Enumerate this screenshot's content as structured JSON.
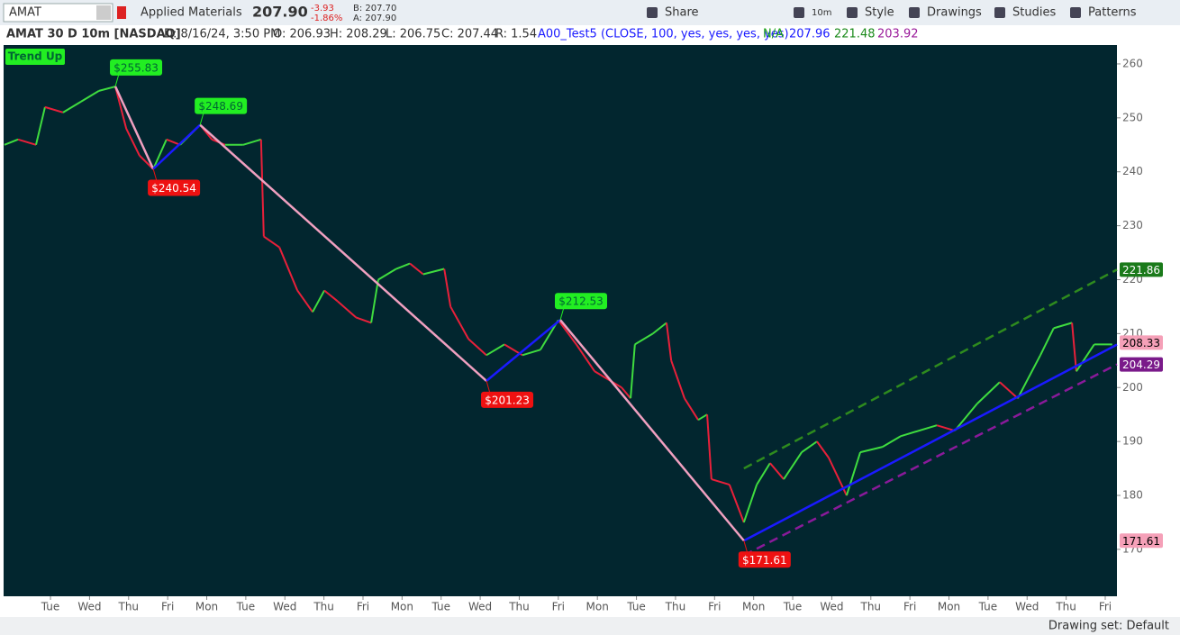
{
  "toolbar": {
    "symbol": "AMAT",
    "company": "Applied Materials",
    "last": "207.90",
    "change": "-3.93",
    "change_pct": "-1.86%",
    "bid": "B: 207.70",
    "ask": "A: 207.90",
    "buttons": [
      "Share",
      "10m",
      "Style",
      "Drawings",
      "Studies",
      "Patterns"
    ]
  },
  "info_bar": {
    "items": [
      "AMAT 30 D 10m [NASDAQ]",
      "D: 8/16/24, 3:50 PM",
      "O: 206.93",
      "H: 208.29",
      "L: 206.75",
      "C: 207.44",
      "R: 1.54"
    ],
    "study": "A00_Test5 (CLOSE, 100, yes, yes, yes, yes)",
    "study_values": [
      "N/A",
      "207.96",
      "221.48",
      "203.92"
    ],
    "study_colors": [
      "#1aa01a",
      "#1a1aff",
      "#1a8a1a",
      "#9a1a9a"
    ]
  },
  "chart_data": {
    "type": "line",
    "trend_label": "Trend Up",
    "background": "#02262f",
    "up_color": "#3fdc3f",
    "down_color": "#e8203a",
    "x": [
      -1.18,
      -0.83,
      -0.37,
      -0.14,
      0.32,
      0.78,
      1.24,
      1.66,
      1.94,
      2.28,
      2.63,
      2.97,
      3.32,
      3.83,
      4.13,
      4.47,
      4.93,
      5.39,
      5.46,
      5.86,
      6.32,
      6.71,
      7.01,
      7.35,
      7.82,
      8.21,
      8.39,
      8.85,
      9.2,
      9.54,
      10.08,
      10.24,
      10.7,
      11.16,
      11.62,
      12.08,
      12.54,
      13.0,
      13.46,
      13.93,
      14.62,
      14.85,
      14.96,
      15.42,
      15.77,
      15.89,
      16.23,
      16.58,
      16.81,
      16.92,
      17.38,
      17.75,
      18.08,
      18.42,
      18.77,
      19.23,
      19.62,
      19.92,
      20.38,
      20.73,
      21.3,
      21.77,
      22.69,
      23.15,
      23.72,
      24.3,
      24.76,
      25.34,
      25.68,
      26.15,
      26.26,
      26.72,
      27.18
    ],
    "values": [
      245,
      246,
      245,
      252,
      251,
      253,
      255,
      255.8,
      248,
      243,
      240.5,
      246,
      245,
      248.7,
      246,
      245,
      245,
      246,
      228,
      226,
      218,
      214,
      218,
      216,
      213,
      212,
      220,
      222,
      223,
      221,
      222,
      215,
      209,
      206,
      208,
      206,
      207,
      212.5,
      208,
      203,
      200,
      198,
      208,
      210,
      212,
      205,
      198,
      194,
      195,
      183,
      182,
      175,
      182,
      186,
      183,
      188,
      190,
      187,
      180,
      188,
      189,
      191,
      193,
      192,
      197,
      201,
      198,
      206,
      211,
      212,
      203,
      208,
      208
    ],
    "zigzag": {
      "x": [
        1.66,
        2.63,
        3.83,
        11.16,
        13.05,
        17.75
      ],
      "values": [
        255.83,
        240.54,
        248.69,
        201.23,
        212.53,
        171.61
      ],
      "value_labels": [
        "$255.83",
        "$240.54",
        "$248.69",
        "$201.23",
        "$212.53",
        "$171.61"
      ],
      "up_color": "#1a1aff",
      "down_color": "#f0a0c0",
      "high_color": "#22ee22",
      "low_color": "#ee1111"
    },
    "channel": {
      "x": [
        17.75,
        27.3
      ],
      "lines": [
        {
          "color": "#2e8b1e",
          "dashed": true,
          "values": [
            185.0,
            221.86
          ]
        },
        {
          "color": "#1a1aff",
          "dashed": false,
          "values": [
            171.61,
            207.96
          ]
        },
        {
          "color": "#8a1a9a",
          "dashed": true,
          "values": [
            168.9,
            204.29
          ]
        }
      ]
    },
    "badges": {
      "values": [
        221.86,
        208.33,
        204.29,
        171.61
      ],
      "colors": [
        "#1a7a1a",
        "#f5a0b8",
        "#7a1a8a",
        "#f5a0b8"
      ],
      "text_colors": [
        "#ffffff",
        "#000000",
        "#ffffff",
        "#000000"
      ]
    },
    "xlim": [
      -1.2,
      27.3
    ],
    "ylim": [
      161.3,
      263.5
    ],
    "yticks": [
      170,
      180,
      190,
      200,
      210,
      220,
      230,
      240,
      250,
      260
    ],
    "xticks": [
      {
        "value": 0,
        "label": "Tue"
      },
      {
        "value": 1,
        "label": "Wed"
      },
      {
        "value": 2,
        "label": "Thu"
      },
      {
        "value": 3,
        "label": "Fri"
      },
      {
        "value": 4,
        "label": "Mon"
      },
      {
        "value": 5,
        "label": "Tue"
      },
      {
        "value": 6,
        "label": "Wed"
      },
      {
        "value": 7,
        "label": "Thu"
      },
      {
        "value": 8,
        "label": "Fri"
      },
      {
        "value": 9,
        "label": "Mon"
      },
      {
        "value": 10,
        "label": "Tue"
      },
      {
        "value": 11,
        "label": "Wed"
      },
      {
        "value": 12,
        "label": "Thu"
      },
      {
        "value": 13,
        "label": "Fri"
      },
      {
        "value": 14,
        "label": "Mon"
      },
      {
        "value": 15,
        "label": "Tue"
      },
      {
        "value": 16,
        "label": "Thu"
      },
      {
        "value": 17,
        "label": "Fri"
      },
      {
        "value": 18,
        "label": "Mon"
      },
      {
        "value": 19,
        "label": "Tue"
      },
      {
        "value": 20,
        "label": "Wed"
      },
      {
        "value": 21,
        "label": "Thu"
      },
      {
        "value": 22,
        "label": "Fri"
      },
      {
        "value": 23,
        "label": "Mon"
      },
      {
        "value": 24,
        "label": "Tue"
      },
      {
        "value": 25,
        "label": "Wed"
      },
      {
        "value": 26,
        "label": "Thu"
      },
      {
        "value": 27,
        "label": "Fri"
      }
    ]
  },
  "status_bar": {
    "drawing_set": "Drawing set: Default"
  }
}
